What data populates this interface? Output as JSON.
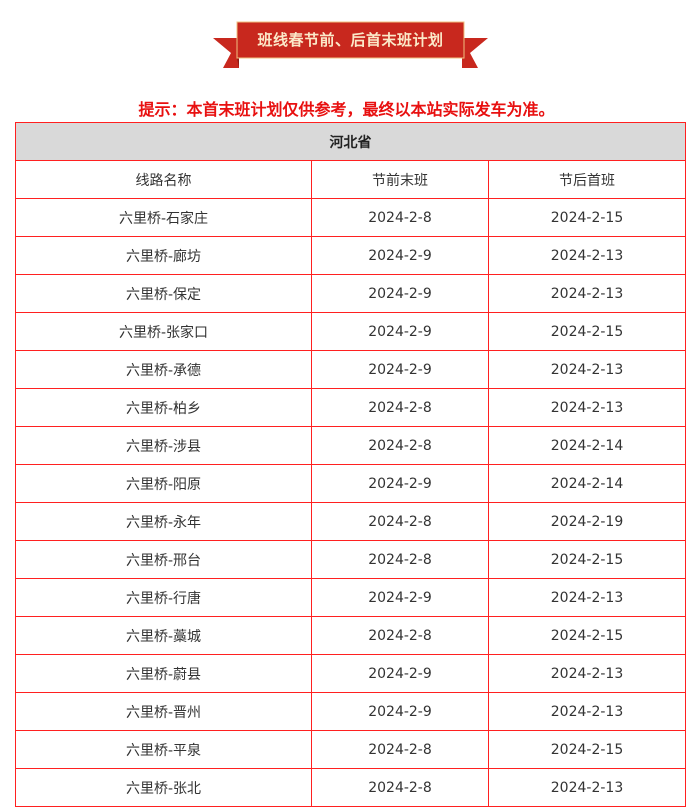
{
  "banner": {
    "title": "班线春节前、后首末班计划",
    "color": "#c8281e"
  },
  "notice": "提示：本首末班计划仅供参考，最终以本站实际发车为准。",
  "table": {
    "province": "河北省",
    "columns": [
      "线路名称",
      "节前末班",
      "节后首班"
    ],
    "rows": [
      [
        "六里桥-石家庄",
        "2024-2-8",
        "2024-2-15"
      ],
      [
        "六里桥-廊坊",
        "2024-2-9",
        "2024-2-13"
      ],
      [
        "六里桥-保定",
        "2024-2-9",
        "2024-2-13"
      ],
      [
        "六里桥-张家口",
        "2024-2-9",
        "2024-2-15"
      ],
      [
        "六里桥-承德",
        "2024-2-9",
        "2024-2-13"
      ],
      [
        "六里桥-柏乡",
        "2024-2-8",
        "2024-2-13"
      ],
      [
        "六里桥-涉县",
        "2024-2-8",
        "2024-2-14"
      ],
      [
        "六里桥-阳原",
        "2024-2-9",
        "2024-2-14"
      ],
      [
        "六里桥-永年",
        "2024-2-8",
        "2024-2-19"
      ],
      [
        "六里桥-邢台",
        "2024-2-8",
        "2024-2-15"
      ],
      [
        "六里桥-行唐",
        "2024-2-9",
        "2024-2-13"
      ],
      [
        "六里桥-藁城",
        "2024-2-8",
        "2024-2-15"
      ],
      [
        "六里桥-蔚县",
        "2024-2-9",
        "2024-2-13"
      ],
      [
        "六里桥-晋州",
        "2024-2-9",
        "2024-2-13"
      ],
      [
        "六里桥-平泉",
        "2024-2-8",
        "2024-2-15"
      ],
      [
        "六里桥-张北",
        "2024-2-8",
        "2024-2-13"
      ]
    ]
  }
}
